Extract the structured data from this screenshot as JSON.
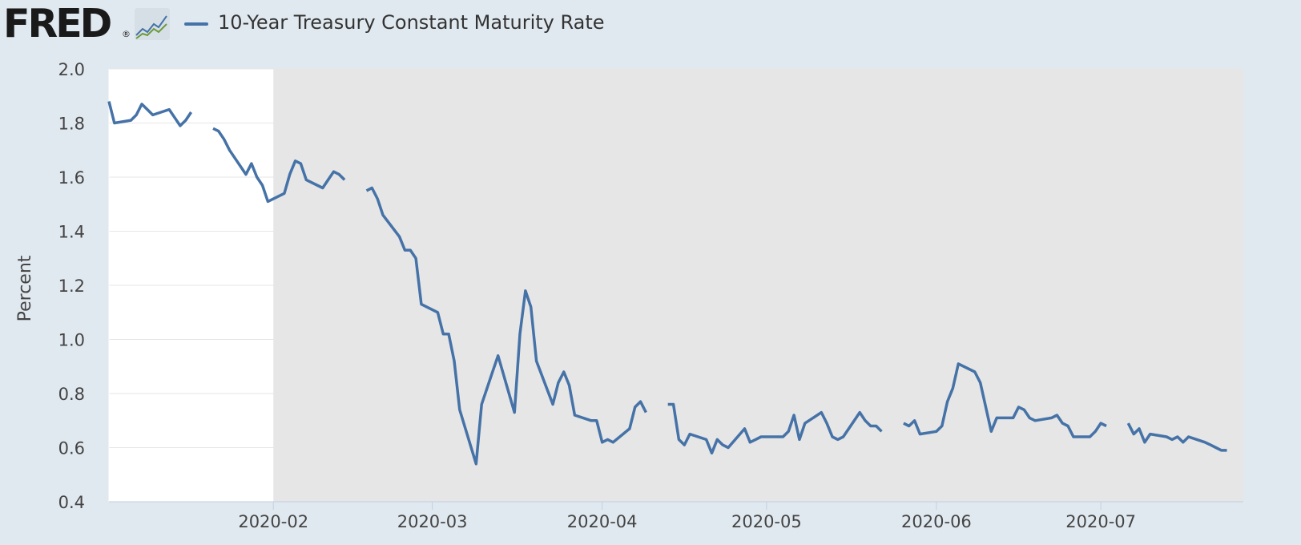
{
  "header": {
    "logo_text": "FRED",
    "logo_mark": "®",
    "graph_icon": "line-chart-icon"
  },
  "chart_data": {
    "type": "line",
    "title": "",
    "xlabel": "",
    "ylabel": "Percent",
    "ylim": [
      0.4,
      2.0
    ],
    "yticks": [
      "0.4",
      "0.6",
      "0.8",
      "1.0",
      "1.2",
      "1.4",
      "1.6",
      "1.8",
      "2.0"
    ],
    "xlim": [
      "2020-01-02",
      "2020-07-27"
    ],
    "xticks": [
      "2020-02",
      "2020-03",
      "2020-04",
      "2020-05",
      "2020-06",
      "2020-07"
    ],
    "xtick_dates": [
      "2020-02-01",
      "2020-03-01",
      "2020-04-01",
      "2020-05-01",
      "2020-06-01",
      "2020-07-01"
    ],
    "shaded_region": {
      "start": "2020-02-01",
      "end": "2020-07-27",
      "color": "#e6e6e6",
      "label": ""
    },
    "grid": true,
    "legend_position": "top-left",
    "colors": {
      "series": "#4572a7",
      "background": "#e1e9f0",
      "plot": "#ffffff",
      "shade": "#e6e6e6",
      "grid": "#e6e6e6"
    },
    "series": [
      {
        "name": "10-Year Treasury Constant Maturity Rate",
        "segments": [
          [
            [
              "2020-01-02",
              1.88
            ],
            [
              "2020-01-03",
              1.8
            ],
            [
              "2020-01-06",
              1.81
            ],
            [
              "2020-01-07",
              1.83
            ],
            [
              "2020-01-08",
              1.87
            ],
            [
              "2020-01-09",
              1.85
            ],
            [
              "2020-01-10",
              1.83
            ],
            [
              "2020-01-13",
              1.85
            ],
            [
              "2020-01-14",
              1.82
            ],
            [
              "2020-01-15",
              1.79
            ],
            [
              "2020-01-16",
              1.81
            ],
            [
              "2020-01-17",
              1.84
            ]
          ],
          [
            [
              "2020-01-21",
              1.78
            ],
            [
              "2020-01-22",
              1.77
            ],
            [
              "2020-01-23",
              1.74
            ],
            [
              "2020-01-24",
              1.7
            ],
            [
              "2020-01-27",
              1.61
            ],
            [
              "2020-01-28",
              1.65
            ],
            [
              "2020-01-29",
              1.6
            ],
            [
              "2020-01-30",
              1.57
            ],
            [
              "2020-01-31",
              1.51
            ],
            [
              "2020-02-03",
              1.54
            ],
            [
              "2020-02-04",
              1.61
            ],
            [
              "2020-02-05",
              1.66
            ],
            [
              "2020-02-06",
              1.65
            ],
            [
              "2020-02-07",
              1.59
            ],
            [
              "2020-02-10",
              1.56
            ],
            [
              "2020-02-11",
              1.59
            ],
            [
              "2020-02-12",
              1.62
            ],
            [
              "2020-02-13",
              1.61
            ],
            [
              "2020-02-14",
              1.59
            ]
          ],
          [
            [
              "2020-02-18",
              1.55
            ],
            [
              "2020-02-19",
              1.56
            ],
            [
              "2020-02-20",
              1.52
            ],
            [
              "2020-02-21",
              1.46
            ],
            [
              "2020-02-24",
              1.38
            ],
            [
              "2020-02-25",
              1.33
            ],
            [
              "2020-02-26",
              1.33
            ],
            [
              "2020-02-27",
              1.3
            ],
            [
              "2020-02-28",
              1.13
            ],
            [
              "2020-03-02",
              1.1
            ],
            [
              "2020-03-03",
              1.02
            ],
            [
              "2020-03-04",
              1.02
            ],
            [
              "2020-03-05",
              0.92
            ],
            [
              "2020-03-06",
              0.74
            ],
            [
              "2020-03-09",
              0.54
            ],
            [
              "2020-03-10",
              0.76
            ],
            [
              "2020-03-11",
              0.82
            ],
            [
              "2020-03-12",
              0.88
            ],
            [
              "2020-03-13",
              0.94
            ],
            [
              "2020-03-16",
              0.73
            ],
            [
              "2020-03-17",
              1.02
            ],
            [
              "2020-03-18",
              1.18
            ],
            [
              "2020-03-19",
              1.12
            ],
            [
              "2020-03-20",
              0.92
            ],
            [
              "2020-03-23",
              0.76
            ],
            [
              "2020-03-24",
              0.84
            ],
            [
              "2020-03-25",
              0.88
            ],
            [
              "2020-03-26",
              0.83
            ],
            [
              "2020-03-27",
              0.72
            ],
            [
              "2020-03-30",
              0.7
            ],
            [
              "2020-03-31",
              0.7
            ],
            [
              "2020-04-01",
              0.62
            ],
            [
              "2020-04-02",
              0.63
            ],
            [
              "2020-04-03",
              0.62
            ],
            [
              "2020-04-06",
              0.67
            ],
            [
              "2020-04-07",
              0.75
            ],
            [
              "2020-04-08",
              0.77
            ],
            [
              "2020-04-09",
              0.73
            ]
          ],
          [
            [
              "2020-04-13",
              0.76
            ],
            [
              "2020-04-14",
              0.76
            ],
            [
              "2020-04-15",
              0.63
            ],
            [
              "2020-04-16",
              0.61
            ],
            [
              "2020-04-17",
              0.65
            ],
            [
              "2020-04-20",
              0.63
            ],
            [
              "2020-04-21",
              0.58
            ],
            [
              "2020-04-22",
              0.63
            ],
            [
              "2020-04-23",
              0.61
            ],
            [
              "2020-04-24",
              0.6
            ],
            [
              "2020-04-27",
              0.67
            ],
            [
              "2020-04-28",
              0.62
            ],
            [
              "2020-04-29",
              0.63
            ],
            [
              "2020-04-30",
              0.64
            ],
            [
              "2020-05-01",
              0.64
            ],
            [
              "2020-05-04",
              0.64
            ],
            [
              "2020-05-05",
              0.66
            ],
            [
              "2020-05-06",
              0.72
            ],
            [
              "2020-05-07",
              0.63
            ],
            [
              "2020-05-08",
              0.69
            ],
            [
              "2020-05-11",
              0.73
            ],
            [
              "2020-05-12",
              0.69
            ],
            [
              "2020-05-13",
              0.64
            ],
            [
              "2020-05-14",
              0.63
            ],
            [
              "2020-05-15",
              0.64
            ],
            [
              "2020-05-18",
              0.73
            ],
            [
              "2020-05-19",
              0.7
            ],
            [
              "2020-05-20",
              0.68
            ],
            [
              "2020-05-21",
              0.68
            ],
            [
              "2020-05-22",
              0.66
            ]
          ],
          [
            [
              "2020-05-26",
              0.69
            ],
            [
              "2020-05-27",
              0.68
            ],
            [
              "2020-05-28",
              0.7
            ],
            [
              "2020-05-29",
              0.65
            ],
            [
              "2020-06-01",
              0.66
            ],
            [
              "2020-06-02",
              0.68
            ],
            [
              "2020-06-03",
              0.77
            ],
            [
              "2020-06-04",
              0.82
            ],
            [
              "2020-06-05",
              0.91
            ],
            [
              "2020-06-08",
              0.88
            ],
            [
              "2020-06-09",
              0.84
            ],
            [
              "2020-06-10",
              0.75
            ],
            [
              "2020-06-11",
              0.66
            ],
            [
              "2020-06-12",
              0.71
            ],
            [
              "2020-06-15",
              0.71
            ],
            [
              "2020-06-16",
              0.75
            ],
            [
              "2020-06-17",
              0.74
            ],
            [
              "2020-06-18",
              0.71
            ],
            [
              "2020-06-19",
              0.7
            ],
            [
              "2020-06-22",
              0.71
            ],
            [
              "2020-06-23",
              0.72
            ],
            [
              "2020-06-24",
              0.69
            ],
            [
              "2020-06-25",
              0.68
            ],
            [
              "2020-06-26",
              0.64
            ],
            [
              "2020-06-29",
              0.64
            ],
            [
              "2020-06-30",
              0.66
            ],
            [
              "2020-07-01",
              0.69
            ],
            [
              "2020-07-02",
              0.68
            ]
          ],
          [
            [
              "2020-07-06",
              0.69
            ],
            [
              "2020-07-07",
              0.65
            ],
            [
              "2020-07-08",
              0.67
            ],
            [
              "2020-07-09",
              0.62
            ],
            [
              "2020-07-10",
              0.65
            ],
            [
              "2020-07-13",
              0.64
            ],
            [
              "2020-07-14",
              0.63
            ],
            [
              "2020-07-15",
              0.64
            ],
            [
              "2020-07-16",
              0.62
            ],
            [
              "2020-07-17",
              0.64
            ],
            [
              "2020-07-20",
              0.62
            ],
            [
              "2020-07-21",
              0.61
            ],
            [
              "2020-07-22",
              0.6
            ],
            [
              "2020-07-23",
              0.59
            ],
            [
              "2020-07-24",
              0.59
            ]
          ]
        ]
      }
    ]
  }
}
